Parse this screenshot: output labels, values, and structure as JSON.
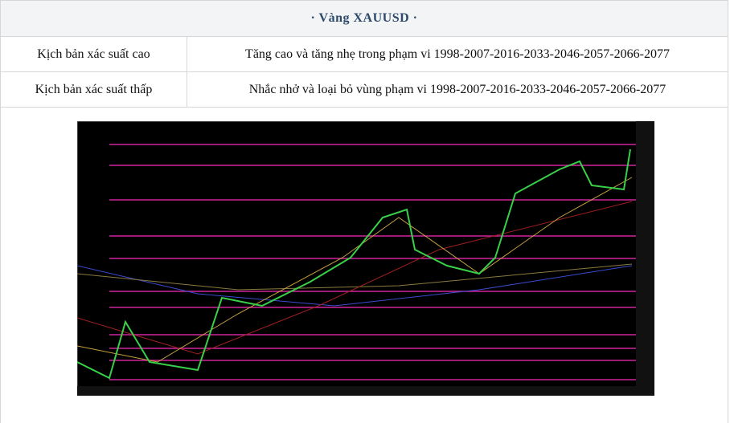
{
  "header": {
    "title": "· Vàng XAUUSD ·"
  },
  "table": {
    "rows": [
      [
        "Kịch bản xác suất cao",
        "Tăng cao và tăng nhẹ trong phạm vi 1998-2007-2016-2033-2046-2057-2066-2077"
      ],
      [
        "Kịch bản xác suất thấp",
        "Nhắc nhở và loại bỏ vùng phạm vi 1998-2007-2016-2033-2046-2057-2066-2077"
      ]
    ]
  }
}
